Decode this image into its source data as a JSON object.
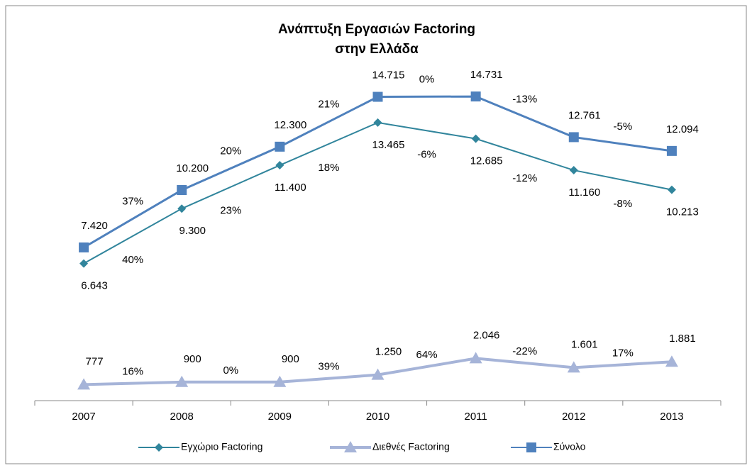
{
  "chart_data": {
    "type": "line",
    "title_lines": [
      "Ανάπτυξη Εργασιών Factoring",
      "στην Ελλάδα"
    ],
    "categories": [
      "2007",
      "2008",
      "2009",
      "2010",
      "2011",
      "2012",
      "2013"
    ],
    "ylim": [
      0,
      17000
    ],
    "legend": "bottom",
    "series": [
      {
        "name": "Εγχώριο Factoring",
        "color": "#31859c",
        "marker": "diamond",
        "values": [
          6643,
          9300,
          11400,
          13465,
          12685,
          11160,
          10213
        ],
        "value_labels": [
          "6.643",
          "9.300",
          "11.400",
          "13.465",
          "12.685",
          "11.160",
          "10.213"
        ],
        "change_labels": [
          "40%",
          "23%",
          "18%",
          "-6%",
          "-12%",
          "-8%"
        ]
      },
      {
        "name": "Διεθνές Factoring",
        "color": "#a6b4d8",
        "marker": "triangle",
        "values": [
          777,
          900,
          900,
          1250,
          2046,
          1601,
          1881
        ],
        "value_labels": [
          "777",
          "900",
          "900",
          "1.250",
          "2.046",
          "1.601",
          "1.881"
        ],
        "change_labels": [
          "16%",
          "0%",
          "39%",
          "64%",
          "-22%",
          "17%"
        ]
      },
      {
        "name": "Σύνολο",
        "color": "#4f81bd",
        "marker": "square",
        "values": [
          7420,
          10200,
          12300,
          14715,
          14731,
          12761,
          12094
        ],
        "value_labels": [
          "7.420",
          "10.200",
          "12.300",
          "14.715",
          "14.731",
          "12.761",
          "12.094"
        ],
        "change_labels": [
          "37%",
          "20%",
          "21%",
          "0%",
          "-13%",
          "-5%"
        ]
      }
    ]
  }
}
